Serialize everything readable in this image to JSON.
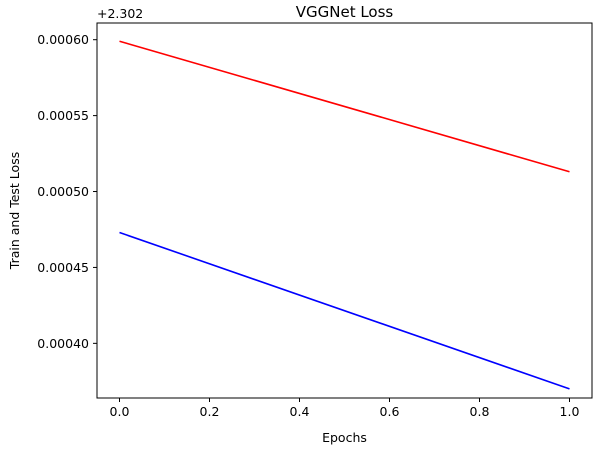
{
  "chart_data": {
    "type": "line",
    "title": "VGGNet Loss",
    "xlabel": "Epochs",
    "ylabel": "Train and Test Loss",
    "offset_text": "+2.302",
    "y_offset": 2.302,
    "xlim": [
      -0.05,
      1.05
    ],
    "ylim": [
      2.302364,
      2.302611
    ],
    "xticks": [
      0.0,
      0.2,
      0.4,
      0.6,
      0.8,
      1.0
    ],
    "xtick_labels": [
      "0.0",
      "0.2",
      "0.4",
      "0.6",
      "0.8",
      "1.0"
    ],
    "yticks": [
      0.0004,
      0.00045,
      0.0005,
      0.00055,
      0.0006
    ],
    "ytick_labels": [
      "0.00040",
      "0.00045",
      "0.00050",
      "0.00055",
      "0.00060"
    ],
    "grid": false,
    "legend": "none",
    "series": [
      {
        "color": "#ff0000",
        "x": [
          0,
          1
        ],
        "y": [
          2.302599,
          2.302513
        ]
      },
      {
        "color": "#0000ff",
        "x": [
          0,
          1
        ],
        "y": [
          2.302473,
          2.30237
        ]
      }
    ]
  }
}
